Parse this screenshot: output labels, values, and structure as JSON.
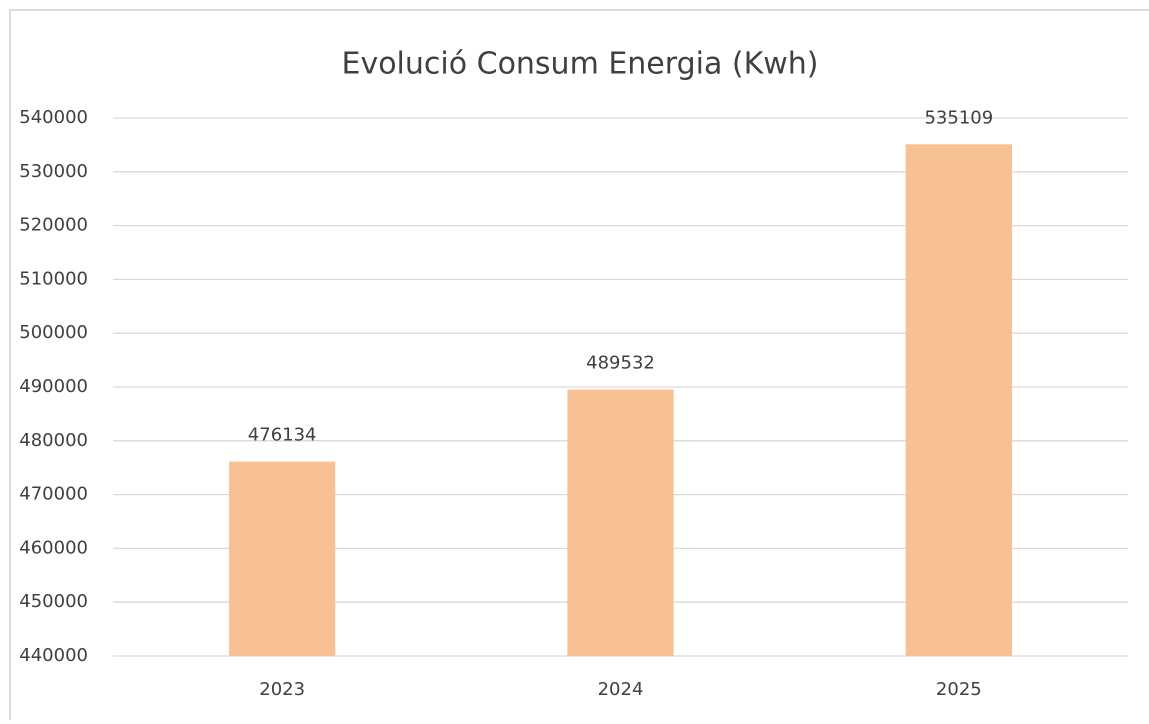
{
  "chart_data": {
    "type": "bar",
    "title": "Evolució Consum Energia (Kwh)",
    "categories": [
      "2023",
      "2024",
      "2025"
    ],
    "values": [
      476134,
      489532,
      535109
    ],
    "color": "#f8c194",
    "ylim": [
      440000,
      540000
    ],
    "yticks": [
      440000,
      450000,
      460000,
      470000,
      480000,
      490000,
      500000,
      510000,
      520000,
      530000,
      540000
    ],
    "grid": true
  }
}
